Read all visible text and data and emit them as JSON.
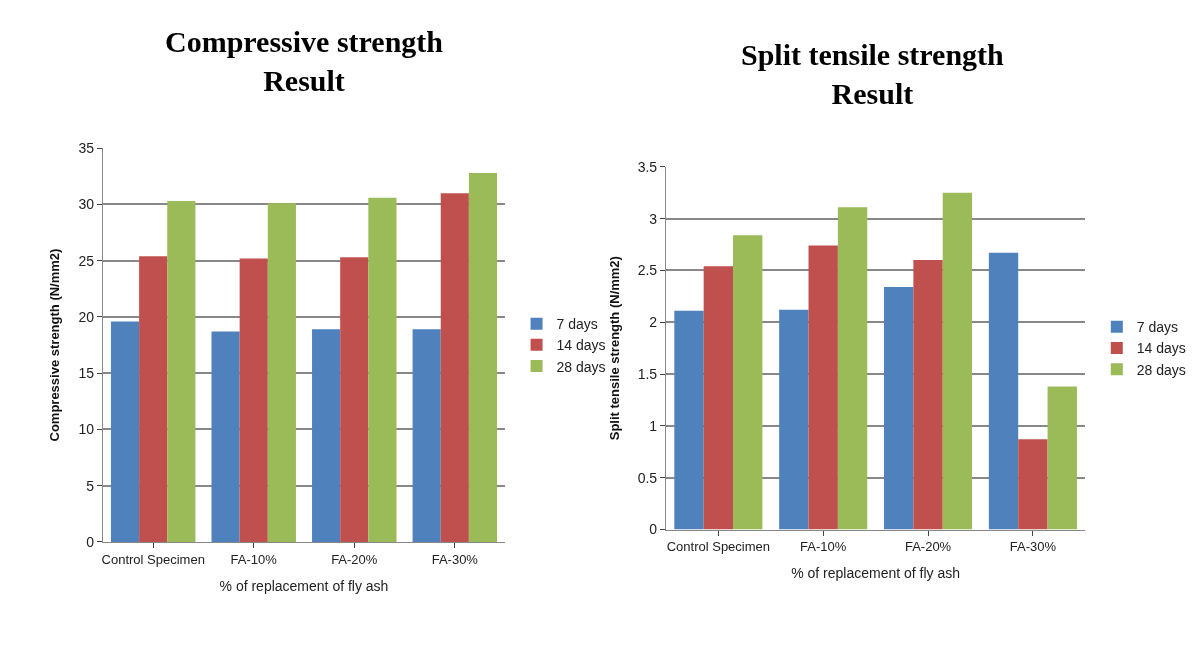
{
  "chart_data": [
    {
      "type": "bar",
      "title": "Compressive strength\nResult",
      "xlabel": "% of replacement of fly ash",
      "ylabel": "Compressive strength (N/mm2)",
      "categories": [
        "Control Specimen",
        "FA-10%",
        "FA-20%",
        "FA-30%"
      ],
      "series": [
        {
          "name": "7 days",
          "color": "#4f81bd",
          "values": [
            19.6,
            18.7,
            18.9,
            18.9
          ]
        },
        {
          "name": "14 days",
          "color": "#c0504d",
          "values": [
            25.4,
            25.2,
            25.3,
            31.0
          ]
        },
        {
          "name": "28 days",
          "color": "#9bbb59",
          "values": [
            30.3,
            30.1,
            30.6,
            32.8
          ]
        }
      ],
      "ylim": [
        0,
        35
      ],
      "yticks": [
        0,
        5,
        10,
        15,
        20,
        25,
        30,
        35
      ],
      "grid": "y",
      "legend": "right"
    },
    {
      "type": "bar",
      "title": "Split tensile strength\nResult",
      "xlabel": "% of replacement of fly ash",
      "ylabel": "Split tensile strength (N/mm2)",
      "categories": [
        "Control Specimen",
        "FA-10%",
        "FA-20%",
        "FA-30%"
      ],
      "series": [
        {
          "name": "7 days",
          "color": "#4f81bd",
          "values": [
            2.11,
            2.12,
            2.34,
            2.67
          ]
        },
        {
          "name": "14 days",
          "color": "#c0504d",
          "values": [
            2.54,
            2.74,
            2.6,
            0.87
          ]
        },
        {
          "name": "28 days",
          "color": "#9bbb59",
          "values": [
            2.84,
            3.11,
            3.25,
            1.38
          ]
        }
      ],
      "ylim": [
        0,
        3.5
      ],
      "yticks": [
        0,
        0.5,
        1,
        1.5,
        2,
        2.5,
        3,
        3.5
      ],
      "grid": "y",
      "legend": "right"
    }
  ]
}
